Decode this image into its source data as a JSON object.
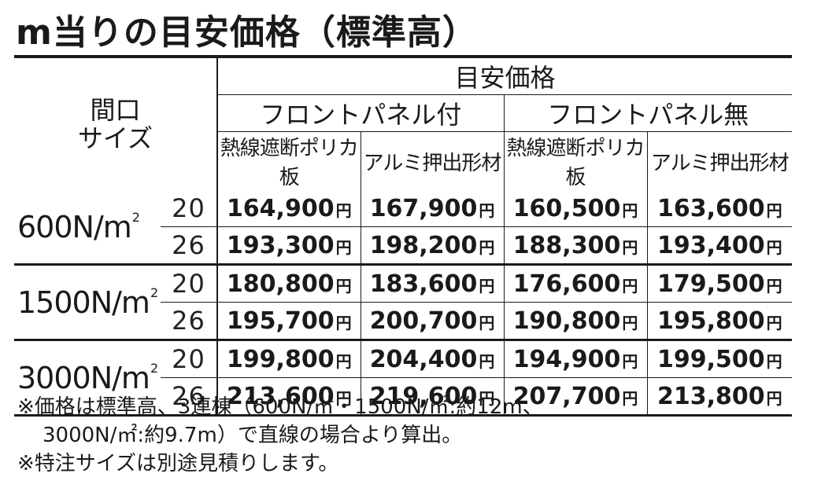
{
  "title": "m当りの目安価格（標準高）",
  "header": {
    "size_label_1": "間口",
    "size_label_2": "サイズ",
    "price_group": "目安価格",
    "front_panel_with": "フロントパネル付",
    "front_panel_without": "フロントパネル無",
    "material_1": "熱線遮断ポリカ板",
    "material_2": "アルミ押出形材",
    "material_3": "熱線遮断ポリカ板",
    "material_4": "アルミ押出形材"
  },
  "yen": "円",
  "rows": [
    {
      "load": "600N/m",
      "load_sup": "2",
      "r20": {
        "thick": "20",
        "p": [
          "164,900",
          "167,900",
          "160,500",
          "163,600"
        ]
      },
      "r26": {
        "thick": "26",
        "p": [
          "193,300",
          "198,200",
          "188,300",
          "193,400"
        ]
      }
    },
    {
      "load": "1500N/m",
      "load_sup": "2",
      "r20": {
        "thick": "20",
        "p": [
          "180,800",
          "183,600",
          "176,600",
          "179,500"
        ]
      },
      "r26": {
        "thick": "26",
        "p": [
          "195,700",
          "200,700",
          "190,800",
          "195,800"
        ]
      }
    },
    {
      "load": "3000N/m",
      "load_sup": "2",
      "r20": {
        "thick": "20",
        "p": [
          "199,800",
          "204,400",
          "194,900",
          "199,500"
        ]
      },
      "r26": {
        "thick": "26",
        "p": [
          "213,600",
          "219,600",
          "207,700",
          "213,800"
        ]
      }
    }
  ],
  "notes": {
    "line1": "※価格は標準高、3連棟（600N/㎡・1500N/㎡:約12m、",
    "line2": "3000N/㎡:約9.7m）で直線の場合より算出。",
    "line3": "※特注サイズは別途見積りします。"
  }
}
